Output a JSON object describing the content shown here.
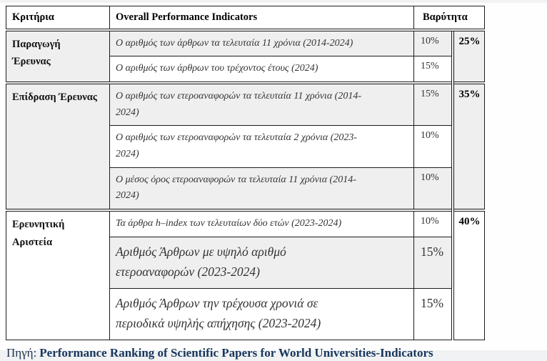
{
  "table": {
    "header": {
      "criteria": "Κριτήρια",
      "indicators": "Overall Performance Indicators",
      "weight": "Βαρύτητα"
    },
    "groups": [
      {
        "criteria": "Παραγωγή\nΈρευνας",
        "total": "25%",
        "rows": [
          {
            "indicator": "Ο αριθμός των άρθρων τα τελευταία 11 χρόνια (2014-2024)",
            "weight": "10%"
          },
          {
            "indicator": "Ο αριθμός των άρθρων του τρέχοντος έτους (2024)",
            "weight": "15%"
          }
        ]
      },
      {
        "criteria": "Επίδραση Έρευνας",
        "total": "35%",
        "rows": [
          {
            "indicator": "Ο αριθμός των ετεροαναφορών τα τελευταία 11 χρόνια (2014-\n2024)",
            "weight": "15%"
          },
          {
            "indicator": "Ο αριθμός των ετεροαναφορών τα τελευταία 2 χρόνια (2023-\n2024)",
            "weight": "10%"
          },
          {
            "indicator": "Ο μέσος όρος ετεροαναφορών τα τελευταία 11 χρόνια (2014-\n2024)",
            "weight": "10%"
          }
        ]
      },
      {
        "criteria": "Ερευνητική\nΑριστεία",
        "total": "40%",
        "rows": [
          {
            "indicator": "Τα άρθρα h–index των τελευταίων δύο ετών (2023-2024)",
            "weight": "10%"
          },
          {
            "indicator": "Αριθμός Άρθρων με υψηλό αριθμό\nετεροαναφορών (2023-2024)",
            "weight": "15%",
            "emphasis": "large"
          },
          {
            "indicator": "Αριθμός Άρθρων την τρέχουσα χρονιά σε\nπεριοδικά υψηλής απήχησης (2023-2024)",
            "weight": "15%",
            "emphasis": "large"
          }
        ]
      }
    ]
  },
  "footer": {
    "source_label": "Πηγή:",
    "source_text": "Performance Ranking of Scientific Papers for World Universities-Indicators"
  },
  "colors": {
    "stripe_gray": "#efefef",
    "border": "#1c1c1c",
    "source_navy": "#17365d"
  }
}
